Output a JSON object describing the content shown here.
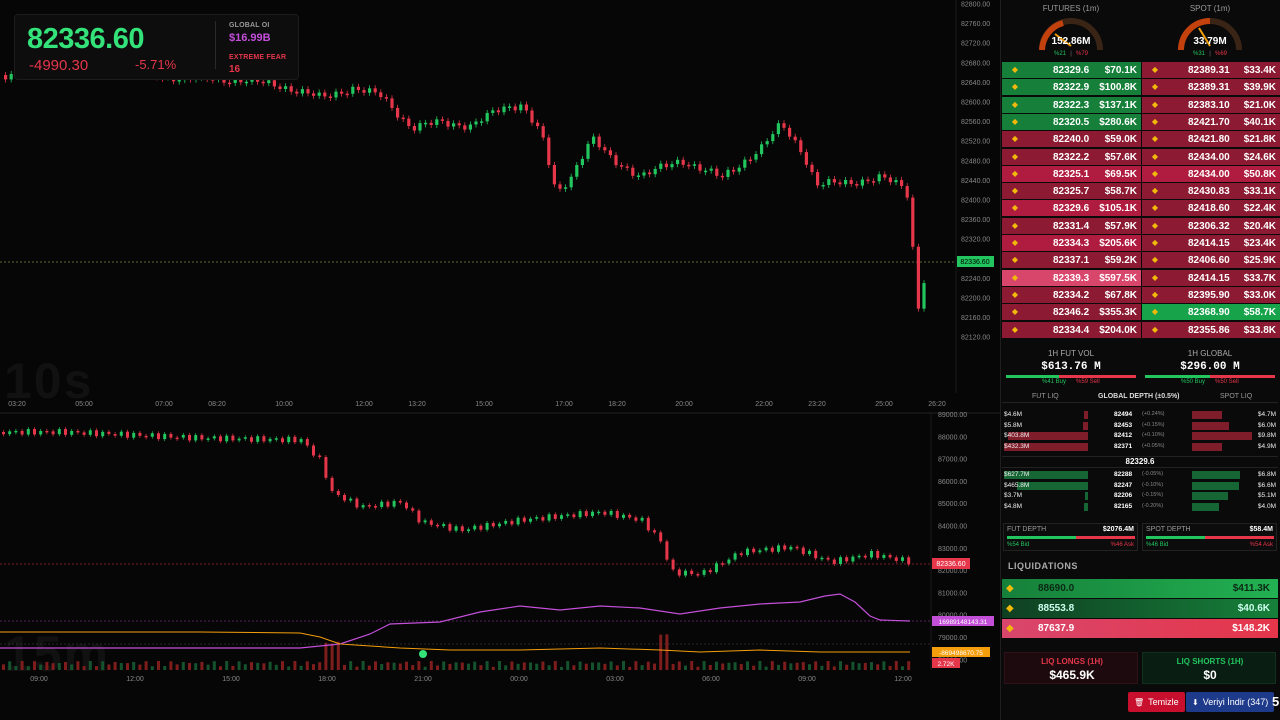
{
  "ticker": {
    "price": "82336.60",
    "change": "-4990.30",
    "change_pct": "-5.71%",
    "global_oi_label": "GLOBAL OI",
    "global_oi_value": "$16.99B",
    "fear_label": "EXTREME FEAR",
    "fear_value": "16"
  },
  "watermarks": {
    "top": "10s",
    "bottom": "15m"
  },
  "top_chart": {
    "y_ticks": [
      "82800.00",
      "82760.00",
      "82720.00",
      "82680.00",
      "82640.00",
      "82600.00",
      "82560.00",
      "82520.00",
      "82480.00",
      "82440.00",
      "82400.00",
      "82360.00",
      "82320.00",
      "82280.00",
      "82240.00",
      "82200.00",
      "82160.00",
      "82120.00"
    ],
    "x_ticks": [
      "03:20",
      "05:00",
      "07:00",
      "08:20",
      "10:00",
      "12:00",
      "13:20",
      "15:00",
      "17:00",
      "18:20",
      "20:00",
      "22:00",
      "23:20",
      "25:00",
      "26:20"
    ],
    "price_tag": "82336.60"
  },
  "bottom_chart": {
    "y_ticks": [
      "89000.00",
      "88000.00",
      "87000.00",
      "86000.00",
      "85000.00",
      "84000.00",
      "83000.00",
      "82000.00",
      "81000.00",
      "80000.00",
      "79000.00",
      "78000.00"
    ],
    "x_ticks": [
      "09:00",
      "12:00",
      "15:00",
      "18:00",
      "21:00",
      "00:00",
      "03:00",
      "06:00",
      "09:00",
      "12:00"
    ],
    "price_tag": "82336.60",
    "oi_tag": "16989148143.31",
    "cvd_tag": "-869498670.75",
    "vol_tag": "2.72K"
  },
  "gauges": {
    "futures": {
      "label": "FUTURES (1m)",
      "value": "152.86M",
      "buy": "%21",
      "sell": "%79"
    },
    "spot": {
      "label": "SPOT (1m)",
      "value": "33.79M",
      "buy": "%31",
      "sell": "%69"
    }
  },
  "orderbook": {
    "left": [
      {
        "price": "82329.6",
        "size": "$70.1K",
        "side": "buy"
      },
      {
        "price": "82322.9",
        "size": "$100.8K",
        "side": "buy"
      },
      {
        "price": "82322.3",
        "size": "$137.1K",
        "side": "buy"
      },
      {
        "price": "82320.5",
        "size": "$280.6K",
        "side": "buy"
      },
      {
        "price": "82240.0",
        "size": "$59.0K",
        "side": "sell"
      },
      {
        "price": "82322.2",
        "size": "$57.6K",
        "side": "sell"
      },
      {
        "price": "82325.1",
        "size": "$69.5K",
        "side": "sell"
      },
      {
        "price": "82325.7",
        "size": "$58.7K",
        "side": "sell"
      },
      {
        "price": "82329.6",
        "size": "$105.1K",
        "side": "sell"
      },
      {
        "price": "82331.4",
        "size": "$57.9K",
        "side": "sell"
      },
      {
        "price": "82334.3",
        "size": "$205.6K",
        "side": "sell"
      },
      {
        "price": "82337.1",
        "size": "$59.2K",
        "side": "sell"
      },
      {
        "price": "82339.3",
        "size": "$597.5K",
        "side": "sellbig"
      },
      {
        "price": "82334.2",
        "size": "$67.8K",
        "side": "sell"
      },
      {
        "price": "82346.2",
        "size": "$355.3K",
        "side": "sell"
      },
      {
        "price": "82334.4",
        "size": "$204.0K",
        "side": "sell"
      }
    ],
    "right": [
      {
        "price": "82389.31",
        "size": "$33.4K",
        "side": "sell"
      },
      {
        "price": "82389.31",
        "size": "$39.9K",
        "side": "sell"
      },
      {
        "price": "82383.10",
        "size": "$21.0K",
        "side": "sell"
      },
      {
        "price": "82421.70",
        "size": "$40.1K",
        "side": "sell"
      },
      {
        "price": "82421.80",
        "size": "$21.8K",
        "side": "sell"
      },
      {
        "price": "82434.00",
        "size": "$24.6K",
        "side": "sell"
      },
      {
        "price": "82434.00",
        "size": "$50.8K",
        "side": "sell"
      },
      {
        "price": "82430.83",
        "size": "$33.1K",
        "side": "sell"
      },
      {
        "price": "82418.60",
        "size": "$22.4K",
        "side": "sell"
      },
      {
        "price": "82306.32",
        "size": "$20.4K",
        "side": "sell"
      },
      {
        "price": "82414.15",
        "size": "$23.4K",
        "side": "sell"
      },
      {
        "price": "82406.60",
        "size": "$25.9K",
        "side": "sell"
      },
      {
        "price": "82414.15",
        "size": "$33.7K",
        "side": "sell"
      },
      {
        "price": "82395.90",
        "size": "$33.0K",
        "side": "sell"
      },
      {
        "price": "82368.90",
        "size": "$58.7K",
        "side": "buy"
      },
      {
        "price": "82355.86",
        "size": "$33.8K",
        "side": "sell"
      }
    ]
  },
  "volume": {
    "fut": {
      "label": "1H FUT VOL",
      "value": "$613.76 M",
      "buy": "%41 Buy",
      "sell": "%59 Sell",
      "buy_frac": 0.41
    },
    "global": {
      "label": "1H GLOBAL",
      "value": "$296.00 M",
      "buy": "%50 Buy",
      "sell": "%50 Sell",
      "buy_frac": 0.5
    }
  },
  "depth": {
    "tabs": [
      "FUT LIQ",
      "GLOBAL DEPTH (±0.5%)",
      "SPOT LIQ"
    ],
    "asks": [
      {
        "left": "$4.6M",
        "price": "82494",
        "pct": "(+0.24%)",
        "right": "$4.7M",
        "lf": 0.05,
        "rf": 0.5
      },
      {
        "left": "$5.8M",
        "price": "82453",
        "pct": "(+0.15%)",
        "right": "$6.0M",
        "lf": 0.06,
        "rf": 0.62
      },
      {
        "left": "$403.8M",
        "price": "82412",
        "pct": "(+0.10%)",
        "right": "$9.8M",
        "lf": 0.95,
        "rf": 1.0
      },
      {
        "left": "$432.3M",
        "price": "82371",
        "pct": "(+0.05%)",
        "right": "$4.9M",
        "lf": 1.0,
        "rf": 0.5
      }
    ],
    "mid": "82329.6",
    "bids": [
      {
        "left": "$627.7M",
        "price": "82288",
        "pct": "(-0.05%)",
        "right": "$6.8M",
        "lf": 1.0,
        "rf": 0.8
      },
      {
        "left": "$465.8M",
        "price": "82247",
        "pct": "(-0.10%)",
        "right": "$6.6M",
        "lf": 0.85,
        "rf": 0.78
      },
      {
        "left": "$3.7M",
        "price": "82206",
        "pct": "(-0.15%)",
        "right": "$5.1M",
        "lf": 0.04,
        "rf": 0.6
      },
      {
        "left": "$4.8M",
        "price": "82165",
        "pct": "(-0.20%)",
        "right": "$4.0M",
        "lf": 0.05,
        "rf": 0.45
      }
    ],
    "fut_depth": {
      "label": "FUT DEPTH",
      "value": "$2076.4M",
      "bid": "%54 Bid",
      "ask": "%46 Ask",
      "bid_frac": 0.54
    },
    "spot_depth": {
      "label": "SPOT DEPTH",
      "value": "$58.4M",
      "bid": "%46 Bid",
      "ask": "%54 Ask",
      "bid_frac": 0.46
    }
  },
  "liquidations": {
    "title": "LIQUIDATIONS",
    "rows": [
      {
        "price": "88690.0",
        "amount": "$411.3K",
        "side": "long"
      },
      {
        "price": "88553.8",
        "amount": "$40.6K",
        "side": "long"
      },
      {
        "price": "87637.9",
        "amount": "$148.2K",
        "side": "short"
      }
    ],
    "longs_label": "LIQ LONGS (1H)",
    "longs_value": "$465.9K",
    "shorts_label": "LIQ SHORTS (1H)",
    "shorts_value": "$0"
  },
  "buttons": {
    "clear": "Temizle",
    "download": "Veriyi İndir (347)",
    "edge": "5"
  },
  "colors": {
    "green": "#22c55e",
    "red": "#e5364a",
    "purple": "#c34fd9",
    "orange": "#f59e0b"
  }
}
